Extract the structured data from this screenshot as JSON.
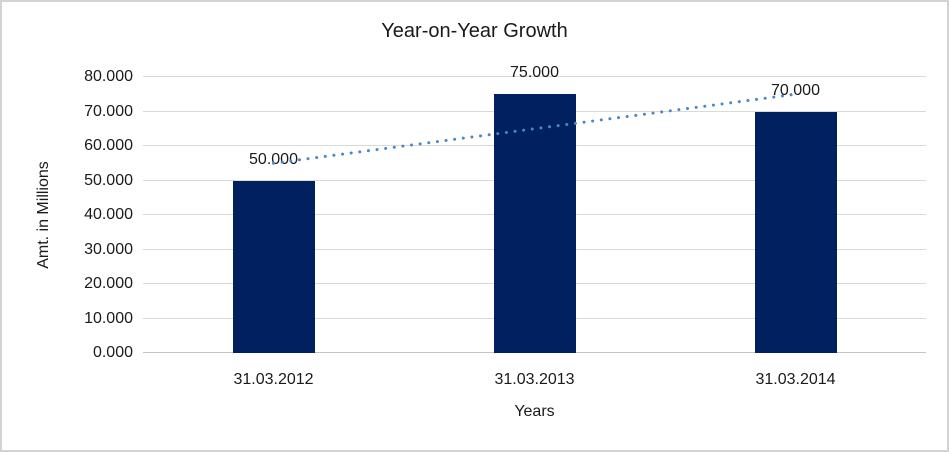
{
  "chart_data": {
    "type": "bar",
    "title": "Year-on-Year Growth",
    "categories": [
      "31.03.2012",
      "31.03.2013",
      "31.03.2014"
    ],
    "values": [
      50,
      75,
      70
    ],
    "value_labels": [
      "50.000",
      "75.000",
      "70.000"
    ],
    "xlabel": "Years",
    "ylabel": "Amt. in Millions",
    "ylim": [
      0,
      80
    ],
    "ytick_values": [
      0,
      10,
      20,
      30,
      40,
      50,
      60,
      70,
      80
    ],
    "ytick_labels": [
      "0.000",
      "10.000",
      "20.000",
      "30.000",
      "40.000",
      "50.000",
      "60.000",
      "70.000",
      "80.000"
    ],
    "grid": true,
    "legend": "none",
    "bar_color": "#002060",
    "trendline": {
      "type": "linear",
      "style": "dotted",
      "color": "#4a86c8",
      "start_value": 55,
      "end_value": 75
    }
  },
  "colors": {
    "background": "#ffffff",
    "border": "#d3d3d3",
    "gridline": "#d9d9d9",
    "axis_line": "#c3c3c3",
    "text": "#1a1a1a"
  }
}
